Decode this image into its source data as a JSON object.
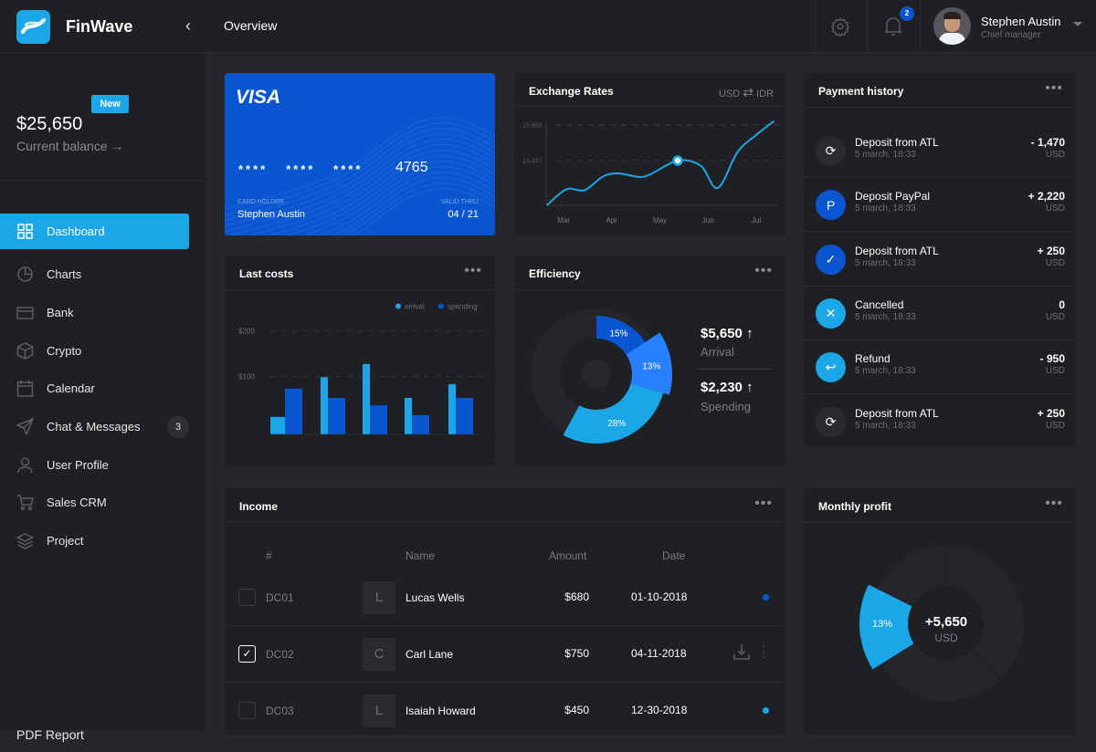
{
  "brand": {
    "name": "FinWave"
  },
  "header": {
    "title": "Overview",
    "notifications": "2",
    "user_name": "Stephen Austin",
    "user_role": "Chief manager"
  },
  "balance": {
    "badge": "New",
    "amount": "$25,650",
    "label": "Current balance",
    "arrow": "→"
  },
  "sidebar": {
    "items": [
      {
        "label": "Dashboard",
        "icon": "grid-icon",
        "active": true
      },
      {
        "label": "Charts",
        "icon": "pie-chart-icon"
      },
      {
        "label": "Bank",
        "icon": "credit-card-icon"
      },
      {
        "label": "Crypto",
        "icon": "cube-icon"
      },
      {
        "label": "Calendar",
        "icon": "calendar-icon"
      },
      {
        "label": "Chat & Messages",
        "icon": "send-icon",
        "badge": "3"
      },
      {
        "label": "User Profile",
        "icon": "user-icon"
      },
      {
        "label": "Sales CRM",
        "icon": "cart-icon"
      },
      {
        "label": "Project",
        "icon": "layers-icon"
      },
      {
        "label": "PDF Report"
      }
    ]
  },
  "visa": {
    "brand": "VISA",
    "masked": "****   ****   ****",
    "last4": "4765",
    "holder_label": "CARD HOLDER",
    "holder": "Stephen Austin",
    "valid_label": "VALID THRU",
    "valid": "04 / 21"
  },
  "exchange": {
    "title": "Exchange Rates",
    "from": "USD",
    "swap": "⇄",
    "to": "IDR"
  },
  "payments": {
    "title": "Payment history",
    "items": [
      {
        "title": "Deposit from ATL",
        "date": "5 march, 18:33",
        "amount": "- 1,470",
        "currency": "USD",
        "icon": "refresh-icon",
        "color": "#2a2b30",
        "glyph": "⟳"
      },
      {
        "title": "Deposit PayPal",
        "date": "5 march, 18:33",
        "amount": "+ 2,220",
        "currency": "USD",
        "icon": "paypal-icon",
        "color": "#0a56d0",
        "glyph": "P"
      },
      {
        "title": "Deposit from ATL",
        "date": "5 march, 18:33",
        "amount": "+ 250",
        "currency": "USD",
        "icon": "check-icon",
        "color": "#0a56d0",
        "glyph": "✓"
      },
      {
        "title": "Cancelled",
        "date": "5 march, 18:33",
        "amount": "0",
        "currency": "USD",
        "icon": "close-icon",
        "color": "#1ba6e8",
        "glyph": "✕"
      },
      {
        "title": "Refund",
        "date": "5 march, 18:33",
        "amount": "- 950",
        "currency": "USD",
        "icon": "reply-icon",
        "color": "#1ba6e8",
        "glyph": "↩"
      },
      {
        "title": "Deposit from ATL",
        "date": "5 march, 18:33",
        "amount": "+ 250",
        "currency": "USD",
        "icon": "refresh-icon",
        "color": "#2a2b30",
        "glyph": "⟳"
      }
    ]
  },
  "last_costs": {
    "title": "Last costs"
  },
  "efficiency": {
    "title": "Efficiency",
    "arrival_value": "$5,650",
    "arrival_label": "Arrival",
    "spending_value": "$2,230",
    "spending_label": "Spending",
    "up": "↑"
  },
  "income": {
    "title": "Income",
    "headers": {
      "id": "#",
      "name": "Name",
      "amount": "Amount",
      "date": "Date"
    },
    "rows": [
      {
        "id": "DC01",
        "initial": "L",
        "name": "Lucas Wells",
        "amount": "$680",
        "date": "01-10-2018",
        "checked": false,
        "status_color": "#0a56d0"
      },
      {
        "id": "DC02",
        "initial": "C",
        "name": "Carl Lane",
        "amount": "$750",
        "date": "04-11-2018",
        "checked": true
      },
      {
        "id": "DC03",
        "initial": "L",
        "name": "Isaiah Howard",
        "amount": "$450",
        "date": "12-30-2018",
        "checked": false,
        "status_color": "#1ba6e8"
      }
    ]
  },
  "monthly_profit": {
    "title": "Monthly profit",
    "value": "+5,650",
    "currency": "USD"
  },
  "chart_data": [
    {
      "type": "line",
      "title": "Exchange Rates",
      "x_ticks": [
        "Mar",
        "Apr",
        "May",
        "Jun",
        "Jul"
      ],
      "y_ticks": [
        "15,603",
        "13,407"
      ],
      "x": [
        -0.35,
        0.06,
        0.44,
        0.82,
        1.14,
        1.58,
        1.84,
        2.37,
        2.85,
        3.2,
        3.61,
        3.99,
        4.37
      ],
      "y": [
        10630,
        11620,
        11570,
        12410,
        12600,
        12380,
        12600,
        13390,
        13070,
        11700,
        13910,
        14950,
        15830
      ],
      "highlight_index": 7,
      "color": "#1ba6e8",
      "grid": true
    },
    {
      "type": "bar",
      "title": "Last costs",
      "y_ticks": [
        "$200",
        "$100"
      ],
      "ylim": [
        0,
        200
      ],
      "legend": "top-right",
      "series": [
        {
          "name": "arrival",
          "color": "#1ba6e8",
          "values": [
            30,
            99,
            122,
            63,
            87
          ]
        },
        {
          "name": "spending",
          "color": "#0a56d0",
          "values": [
            79,
            63,
            50,
            33,
            63
          ]
        }
      ]
    },
    {
      "type": "pie",
      "title": "Efficiency",
      "slices": [
        {
          "label": "15%",
          "value": 15,
          "color": "#0a56d0"
        },
        {
          "label": "13%",
          "value": 13,
          "color": "#2680ff"
        },
        {
          "label": "28%",
          "value": 28,
          "color": "#1ba6e8"
        }
      ]
    },
    {
      "type": "pie",
      "title": "Monthly profit",
      "slices": [
        {
          "label": "13%",
          "value": 13,
          "color": "#1ba6e8"
        }
      ]
    }
  ]
}
